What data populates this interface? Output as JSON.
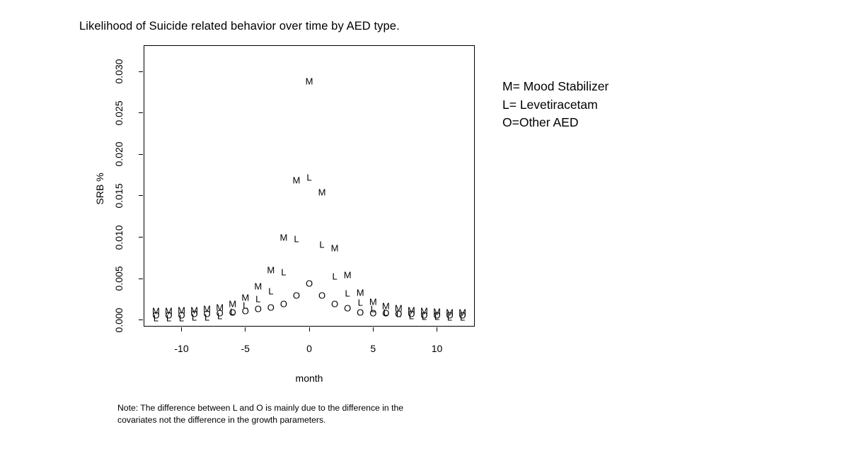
{
  "title": "Likelihood of Suicide related behavior over time by AED type.",
  "legend": {
    "lines": [
      "M= Mood Stabilizer",
      "L= Levetiracetam",
      "O=Other AED"
    ]
  },
  "note": {
    "line1": "Note: The difference between L and O is mainly due to the difference in the",
    "line2": "covariates not the difference in the growth parameters."
  },
  "chart_data": {
    "type": "scatter",
    "marker_style": "text-glyphs",
    "title": "Likelihood of Suicide related behavior over time by AED type.",
    "xlabel": "month",
    "ylabel": "SRB %",
    "xlim": [
      -13,
      13
    ],
    "ylim": [
      0,
      0.03
    ],
    "grid": false,
    "legend_position": "right-outside",
    "x_ticks": [
      -10,
      -5,
      0,
      5,
      10
    ],
    "y_ticks": [
      0,
      0.005,
      0.01,
      0.015,
      0.02,
      0.025,
      0.03
    ],
    "x": [
      -12,
      -11,
      -10,
      -9,
      -8,
      -7,
      -6,
      -5,
      -4,
      -3,
      -2,
      -1,
      0,
      1,
      2,
      3,
      4,
      5,
      6,
      7,
      8,
      9,
      10,
      11,
      12
    ],
    "series": [
      {
        "name": "Mood Stabilizer",
        "glyph": "M",
        "values": [
          0.0011,
          0.0011,
          0.0012,
          0.0012,
          0.0013,
          0.0015,
          0.0019,
          0.0027,
          0.0041,
          0.006,
          0.01,
          0.0169,
          0.0288,
          0.0154,
          0.0087,
          0.0054,
          0.0033,
          0.0022,
          0.0017,
          0.0014,
          0.0012,
          0.0011,
          0.001,
          0.0009,
          0.0009
        ]
      },
      {
        "name": "Levetiracetam",
        "glyph": "L",
        "values": [
          0.0002,
          0.0002,
          0.0002,
          0.0003,
          0.0003,
          0.0005,
          0.001,
          0.0018,
          0.0025,
          0.0035,
          0.0058,
          0.0098,
          0.0172,
          0.0091,
          0.0053,
          0.0032,
          0.0021,
          0.0013,
          0.0009,
          0.0007,
          0.0005,
          0.0004,
          0.0004,
          0.0003,
          0.0003
        ]
      },
      {
        "name": "Other AED",
        "glyph": "O",
        "values": [
          0.0006,
          0.0006,
          0.0006,
          0.0007,
          0.0007,
          0.0008,
          0.0009,
          0.0011,
          0.0013,
          0.0015,
          0.0019,
          0.003,
          0.0044,
          0.003,
          0.0019,
          0.0014,
          0.0009,
          0.0008,
          0.0008,
          0.0007,
          0.0007,
          0.0006,
          0.0006,
          0.0006,
          0.0006
        ]
      }
    ],
    "marker_color": "#000000",
    "background_color": "#ffffff"
  }
}
